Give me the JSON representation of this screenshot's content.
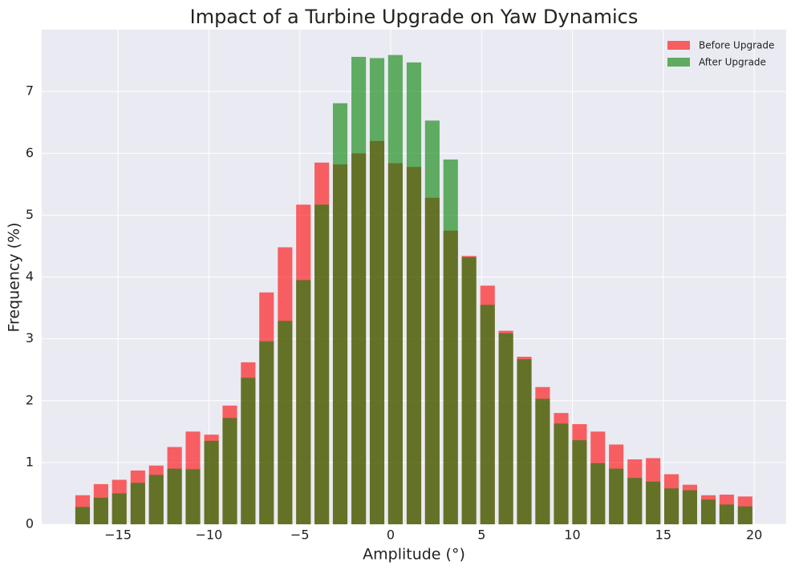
{
  "chart_data": {
    "type": "bar",
    "title": "Impact of a Turbine Upgrade on Yaw Dynamics",
    "x_label": "Amplitude (°)",
    "y_label": "Frequency (%)",
    "x": [
      -16.95,
      -15.94,
      -14.93,
      -13.91,
      -12.9,
      -11.89,
      -10.88,
      -9.86,
      -8.85,
      -7.84,
      -6.83,
      -5.81,
      -4.8,
      -3.79,
      -2.78,
      -1.76,
      -0.75,
      0.26,
      1.28,
      2.29,
      3.3,
      4.31,
      5.33,
      6.34,
      7.35,
      8.36,
      9.38,
      10.39,
      11.4,
      12.41,
      13.43,
      14.44,
      15.45,
      16.46,
      17.48,
      18.49,
      19.5
    ],
    "series": [
      {
        "name": "Before Upgrade",
        "color": "#ff0000",
        "values": [
          0.47,
          0.65,
          0.72,
          0.87,
          0.95,
          1.25,
          1.5,
          1.45,
          1.92,
          2.62,
          3.75,
          4.48,
          5.17,
          5.85,
          5.82,
          6.0,
          6.2,
          5.84,
          5.78,
          5.28,
          4.75,
          4.34,
          3.86,
          3.13,
          2.71,
          2.22,
          1.8,
          1.62,
          1.5,
          1.29,
          1.05,
          1.07,
          0.81,
          0.64,
          0.47,
          0.48,
          0.45
        ]
      },
      {
        "name": "After Upgrade",
        "color": "#008000",
        "values": [
          0.28,
          0.43,
          0.5,
          0.67,
          0.8,
          0.9,
          0.89,
          1.35,
          1.72,
          2.37,
          2.96,
          3.29,
          3.95,
          5.17,
          6.81,
          7.56,
          7.54,
          7.59,
          7.47,
          6.53,
          5.9,
          4.32,
          3.55,
          3.09,
          2.67,
          2.03,
          1.63,
          1.36,
          0.99,
          0.9,
          0.75,
          0.69,
          0.58,
          0.55,
          0.4,
          0.32,
          0.29
        ]
      }
    ],
    "bar_width": 0.8,
    "opacity": 0.6,
    "xlim": [
      -19.2,
      21.76
    ],
    "ylim": [
      0,
      8
    ],
    "xticks": [
      {
        "value": -15,
        "label": "−15"
      },
      {
        "value": -10,
        "label": "−10"
      },
      {
        "value": -5,
        "label": "−5"
      },
      0,
      5,
      10,
      15,
      20
    ],
    "yticks": [
      0,
      1,
      2,
      3,
      4,
      5,
      6,
      7
    ],
    "grid": true,
    "legend": "upper right"
  }
}
